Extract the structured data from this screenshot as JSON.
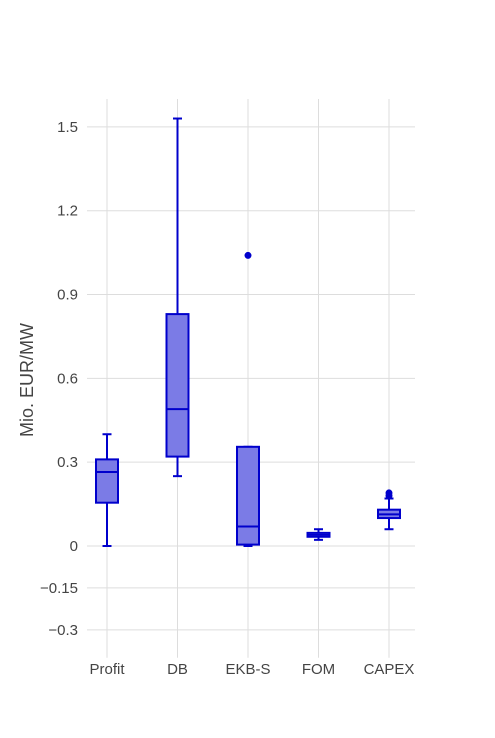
{
  "chart_data": {
    "type": "box",
    "title": "",
    "xlabel": "",
    "ylabel": "Mio. EUR/MW",
    "ylim": [
      -0.4,
      1.6
    ],
    "ytick_values": [
      -0.3,
      -0.15,
      0,
      0.3,
      0.6,
      0.9,
      1.2,
      1.5
    ],
    "ytick_labels": [
      "−0.3",
      "−0.15",
      "0",
      "0.3",
      "0.6",
      "0.9",
      "1.2",
      "1.5"
    ],
    "grid": true,
    "legend": "none",
    "colors": {
      "line": "#0000cc",
      "fill": "#7b7be6",
      "grid": "#dddddd",
      "text": "#444444"
    },
    "categories": [
      "Profit",
      "DB",
      "EKB-S",
      "FOM",
      "CAPEX"
    ],
    "boxes": [
      {
        "category": "Profit",
        "whisker_low": 0.0,
        "q1": 0.155,
        "median": 0.265,
        "q3": 0.31,
        "whisker_high": 0.4,
        "outliers": []
      },
      {
        "category": "DB",
        "whisker_low": 0.25,
        "q1": 0.32,
        "median": 0.49,
        "q3": 0.83,
        "whisker_high": 1.53,
        "outliers": []
      },
      {
        "category": "EKB-S",
        "whisker_low": 0.0,
        "q1": 0.005,
        "median": 0.07,
        "q3": 0.355,
        "whisker_high": 0.355,
        "outliers": [
          1.04
        ]
      },
      {
        "category": "FOM",
        "whisker_low": 0.022,
        "q1": 0.033,
        "median": 0.04,
        "q3": 0.047,
        "whisker_high": 0.06,
        "outliers": []
      },
      {
        "category": "CAPEX",
        "whisker_low": 0.06,
        "q1": 0.1,
        "median": 0.113,
        "q3": 0.13,
        "whisker_high": 0.17,
        "outliers": [
          0.18,
          0.19
        ]
      }
    ]
  }
}
